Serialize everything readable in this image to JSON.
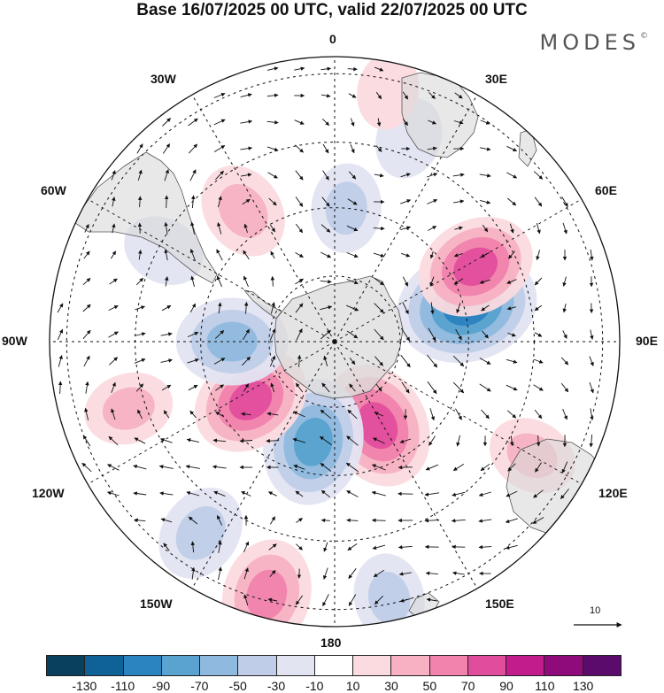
{
  "title": "Base 16/07/2025 00 UTC, valid 22/07/2025 00 UTC",
  "brand": "MODES",
  "brand_mark": "©",
  "meridian_labels": {
    "top": "0",
    "bottom": "180",
    "left": "90W",
    "right": "90E",
    "w30": "30W",
    "e30": "30E",
    "w60": "60W",
    "e60": "60E",
    "w120": "120W",
    "e120": "120E",
    "w150": "150W",
    "e150": "150E"
  },
  "reference_vector": {
    "label": "10",
    "icon": "arrow-right-icon"
  },
  "colorbar": {
    "colors": [
      "#08405e",
      "#0e6296",
      "#2b83bf",
      "#5aa2cf",
      "#8fb9de",
      "#bfcde8",
      "#e3e4f2",
      "#ffffff",
      "#fbdbdf",
      "#f7b1c2",
      "#f183ac",
      "#e04d9d",
      "#c21c8c",
      "#8f0a7a",
      "#5b0b6b"
    ],
    "ticks": [
      "-130",
      "-110",
      "-90",
      "-70",
      "-50",
      "-30",
      "-10",
      "10",
      "30",
      "50",
      "70",
      "90",
      "110",
      "130"
    ]
  },
  "anomaly_centers": [
    {
      "lon": 75,
      "r": 0.48,
      "value": -110
    },
    {
      "lon": 153,
      "r": 0.33,
      "value": 90
    },
    {
      "lon": -168,
      "r": 0.36,
      "value": -90
    },
    {
      "lon": -125,
      "r": 0.36,
      "value": 80
    },
    {
      "lon": -90,
      "r": 0.36,
      "value": -70
    },
    {
      "lon": 62,
      "r": 0.56,
      "value": 80
    },
    {
      "lon": -35,
      "r": 0.56,
      "value": 50
    },
    {
      "lon": 5,
      "r": 0.47,
      "value": -40
    },
    {
      "lon": -108,
      "r": 0.76,
      "value": 40
    },
    {
      "lon": -145,
      "r": 0.82,
      "value": -50
    },
    {
      "lon": -165,
      "r": 0.92,
      "value": 70
    },
    {
      "lon": 168,
      "r": 0.92,
      "value": -40
    },
    {
      "lon": 120,
      "r": 0.8,
      "value": 40
    },
    {
      "lon": 20,
      "r": 0.76,
      "value": -30
    },
    {
      "lon": -62,
      "r": 0.68,
      "value": -30
    },
    {
      "lon": 12,
      "r": 0.9,
      "value": 25
    }
  ]
}
